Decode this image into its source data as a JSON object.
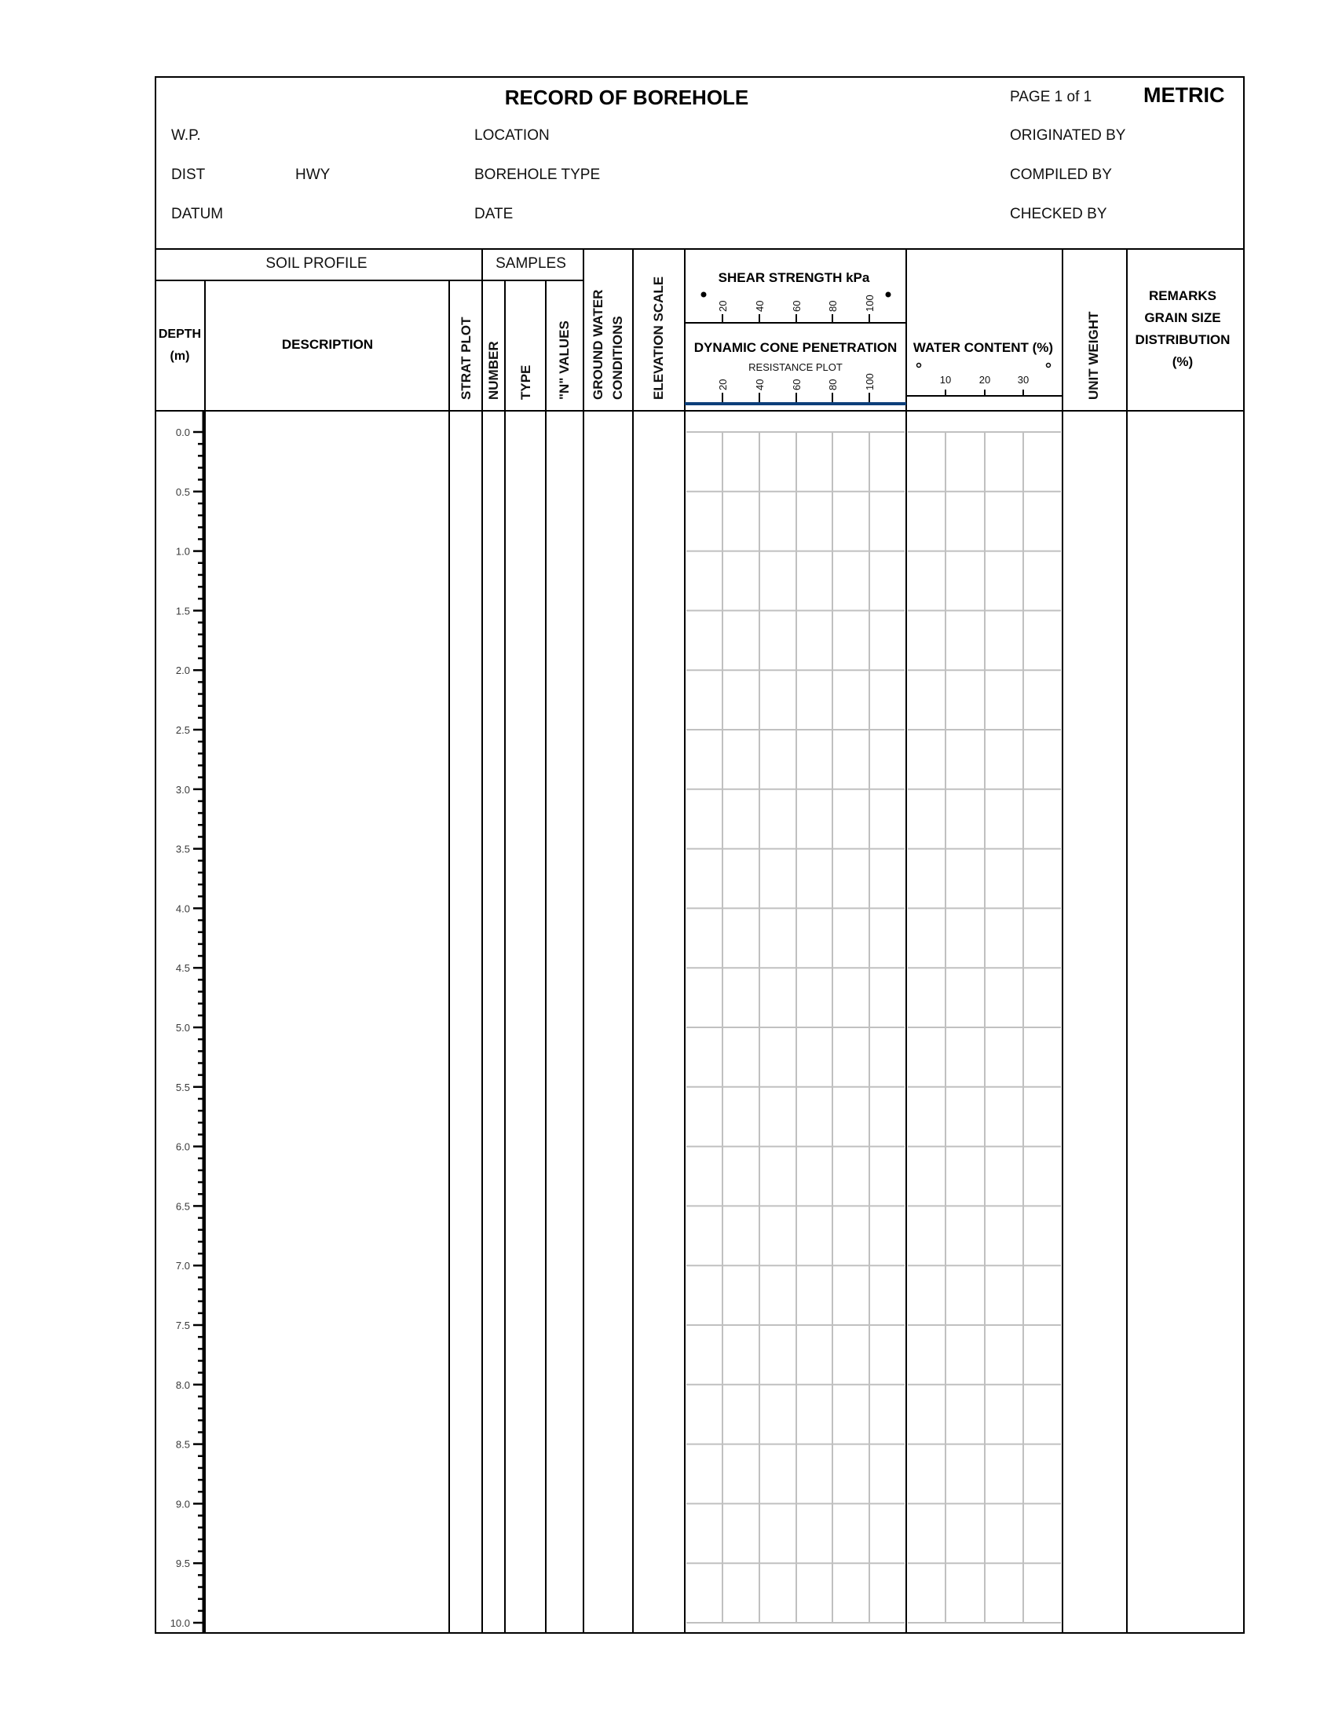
{
  "header": {
    "title": "RECORD OF BOREHOLE",
    "page_label": "PAGE",
    "page_current": "1",
    "page_of": "of",
    "page_total": "1",
    "units": "METRIC",
    "wp_label": "W.P.",
    "dist_label": "DIST",
    "hwy_label": "HWY",
    "datum_label": "DATUM",
    "location_label": "LOCATION",
    "borehole_type_label": "BOREHOLE TYPE",
    "date_label": "DATE",
    "originated_by_label": "ORIGINATED BY",
    "compiled_by_label": "COMPILED BY",
    "checked_by_label": "CHECKED BY"
  },
  "columns": {
    "soil_profile": "SOIL PROFILE",
    "samples": "SAMPLES",
    "depth": "DEPTH",
    "depth_unit": "(m)",
    "description": "DESCRIPTION",
    "strat_plot": "STRAT PLOT",
    "number": "NUMBER",
    "type": "TYPE",
    "n_values": "\"N\" VALUES",
    "ground_water_1": "GROUND WATER",
    "ground_water_2": "CONDITIONS",
    "elevation_scale": "ELEVATION SCALE",
    "shear_strength": "SHEAR STRENGTH kPa",
    "shear_ticks": [
      "20",
      "40",
      "60",
      "80",
      "100"
    ],
    "dcp_title": "DYNAMIC CONE PENETRATION",
    "dcp_subtitle": "RESISTANCE PLOT",
    "dcp_ticks": [
      "20",
      "40",
      "60",
      "80",
      "100"
    ],
    "water_content": "WATER CONTENT (%)",
    "water_ticks": [
      "10",
      "20",
      "30"
    ],
    "unit_weight": "UNIT WEIGHT",
    "remarks": [
      "REMARKS",
      "GRAIN SIZE",
      "DISTRIBUTION",
      "(%)"
    ]
  },
  "depth_scale": {
    "labels": [
      "0.0",
      "0.5",
      "1.0",
      "1.5",
      "2.0",
      "2.5",
      "3.0",
      "3.5",
      "4.0",
      "4.5",
      "5.0",
      "5.5",
      "6.0",
      "6.5",
      "7.0",
      "7.5",
      "8.0",
      "8.5",
      "9.0",
      "9.5",
      "10.0"
    ],
    "minor_tick_interval_m": 0.1
  },
  "colors": {
    "dcp_axis": "#0d3f7a",
    "grid": "#c0c0c0",
    "depth_label": "#3a3a3a"
  }
}
